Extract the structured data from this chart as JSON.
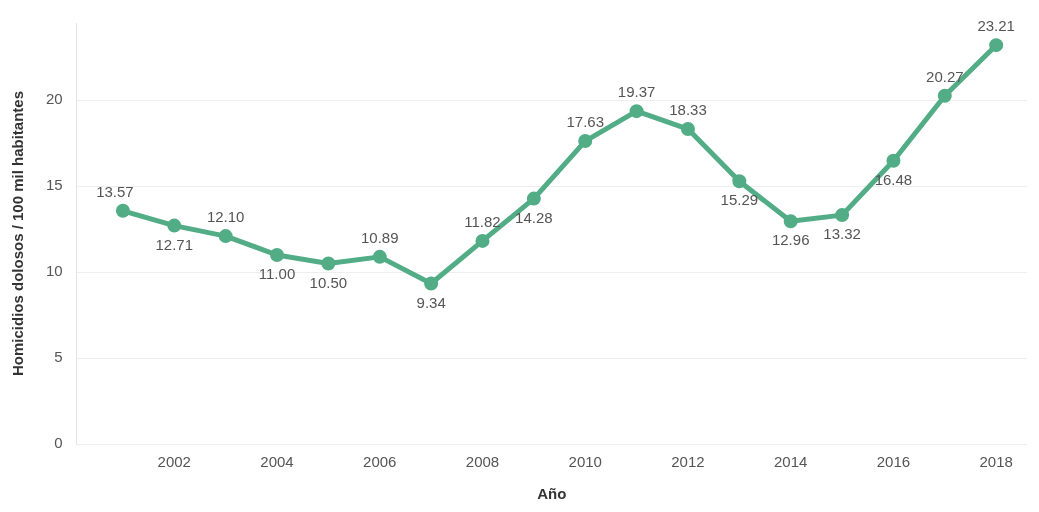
{
  "chart_data": {
    "type": "line",
    "xlabel": "Año",
    "ylabel": "Homicidios dolosos / 100 mil habitantes",
    "x": [
      2001,
      2002,
      2003,
      2004,
      2005,
      2006,
      2007,
      2008,
      2009,
      2010,
      2011,
      2012,
      2013,
      2014,
      2015,
      2016,
      2017,
      2018
    ],
    "series": [
      {
        "color": "#52ad86",
        "values": [
          13.57,
          12.71,
          12.1,
          11.0,
          10.5,
          10.89,
          9.34,
          11.82,
          14.28,
          17.63,
          19.37,
          18.33,
          15.29,
          12.96,
          13.32,
          16.48,
          20.27,
          23.21
        ],
        "value_labels": [
          "13.57",
          "12.71",
          "12.10",
          "11.00",
          "10.50",
          "10.89",
          "9.34",
          "11.82",
          "14.28",
          "17.63",
          "19.37",
          "18.33",
          "15.29",
          "12.96",
          "13.32",
          "16.48",
          "20.27",
          "23.21"
        ]
      }
    ],
    "xlim": [
      2000.1,
      2018.6
    ],
    "xticks": [
      2002,
      2004,
      2006,
      2008,
      2010,
      2012,
      2014,
      2016,
      2018
    ],
    "ylim": [
      0,
      24.5
    ],
    "yticks": [
      0,
      5,
      10,
      15,
      20
    ],
    "grid": "y",
    "legend": false,
    "marker": "circle",
    "line_style": "solid"
  }
}
